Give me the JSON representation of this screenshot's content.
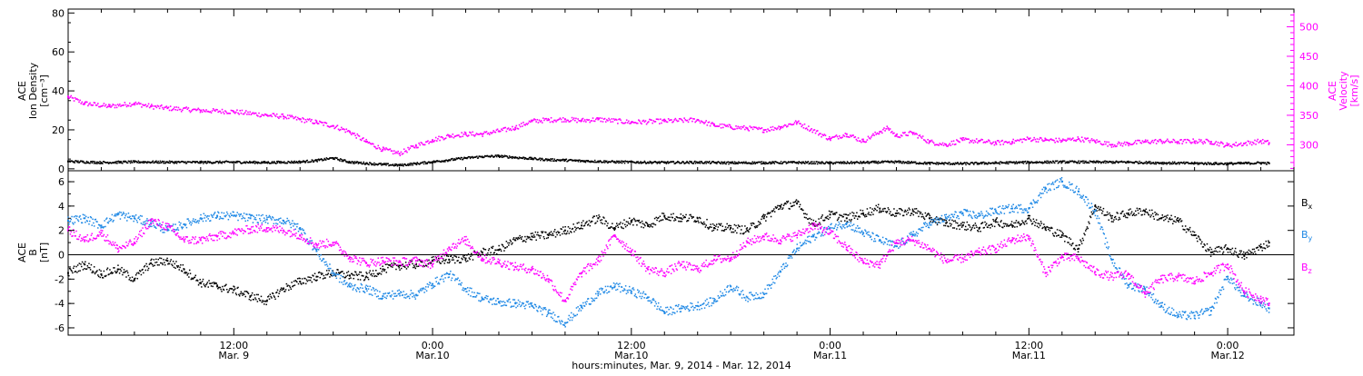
{
  "chart_data": [
    {
      "type": "scatter",
      "panel": "top",
      "ylabel_left": [
        "ACE",
        "Ion Density",
        "[cm⁻³]"
      ],
      "ylabel_right": [
        "ACE",
        "Velocity",
        "[km/s]"
      ],
      "x_unit": "hours since 2014-03-09 00:00",
      "xlim": [
        2,
        76
      ],
      "ylim_left": [
        -1,
        82
      ],
      "left_ticks": [
        "0",
        "20",
        "40",
        "60",
        "80"
      ],
      "ylim_right": [
        256,
        530
      ],
      "right_ticks": [
        "300",
        "350",
        "400",
        "450",
        "500"
      ],
      "grid": false,
      "series": [
        {
          "axis": "right",
          "color": "#ff00ff",
          "x": [
            2,
            3,
            4.5,
            6,
            7,
            8,
            10,
            12,
            14,
            15,
            16,
            17,
            18,
            19,
            20,
            21,
            22,
            23,
            24,
            25,
            26,
            27,
            28,
            29,
            30,
            31,
            32,
            33,
            34,
            36,
            38,
            40,
            41,
            42,
            43,
            44,
            45,
            46,
            48,
            49,
            50,
            51,
            51.5,
            52,
            53,
            54,
            55,
            56,
            57,
            58,
            59,
            60,
            61,
            62,
            63,
            64,
            65,
            66,
            67,
            68,
            69,
            70,
            71,
            72,
            73,
            74,
            74.5
          ],
          "y": [
            381,
            370,
            365,
            370,
            365,
            362,
            358,
            356,
            350,
            348,
            343,
            338,
            332,
            322,
            305,
            292,
            285,
            298,
            308,
            315,
            318,
            318,
            323,
            329,
            340,
            342,
            343,
            341,
            343,
            338,
            340,
            342,
            333,
            330,
            328,
            325,
            330,
            338,
            310,
            318,
            306,
            322,
            328,
            315,
            320,
            305,
            300,
            308,
            306,
            303,
            305,
            310,
            308,
            307,
            310,
            306,
            300,
            302,
            305,
            306,
            305,
            306,
            305,
            299,
            302,
            306,
            303
          ]
        },
        {
          "axis": "left",
          "color": "#000000",
          "x": [
            2,
            4,
            6,
            8,
            10,
            12,
            14,
            16,
            17,
            18,
            19,
            20,
            21,
            22,
            23,
            24,
            25,
            26,
            27,
            28,
            29,
            30,
            31,
            32,
            33,
            34,
            35,
            36,
            38,
            40,
            42,
            44,
            46,
            48,
            50,
            52,
            54,
            56,
            58,
            60,
            62,
            64,
            66,
            68,
            70,
            72,
            74,
            74.5
          ],
          "y": [
            3.8,
            3.2,
            3.5,
            3.4,
            3.3,
            3.4,
            3.2,
            3.5,
            4.2,
            5.5,
            3.4,
            2.8,
            2.2,
            1.8,
            2.6,
            3.5,
            4.5,
            5.5,
            6.2,
            6.5,
            5.8,
            5.2,
            4.6,
            4.4,
            4.0,
            3.8,
            3.5,
            3.4,
            3.2,
            3.3,
            3.0,
            3.1,
            3.2,
            3.0,
            3.2,
            3.5,
            2.8,
            2.6,
            3.0,
            3.3,
            3.5,
            3.4,
            3.4,
            3.0,
            2.8,
            2.6,
            3.0,
            2.8
          ]
        }
      ]
    },
    {
      "type": "scatter",
      "panel": "bottom",
      "ylabel": [
        "ACE",
        "B",
        "[nT]"
      ],
      "x_unit": "hours since 2014-03-09 00:00",
      "xlim": [
        2,
        76
      ],
      "ylim": [
        -6.6,
        6.9
      ],
      "ticks": [
        "-6",
        "-4",
        "-2",
        "0",
        "2",
        "4",
        "6"
      ],
      "zero_line": true,
      "grid": false,
      "series": [
        {
          "name": "B",
          "subscript": "x",
          "color": "#000000",
          "x": [
            2,
            3,
            4,
            5,
            6,
            7,
            8,
            9,
            10,
            11,
            12,
            13,
            14,
            15,
            16,
            17,
            18,
            19,
            20,
            21,
            22,
            23,
            24,
            25,
            26,
            27,
            28,
            29,
            30,
            31,
            32,
            33,
            34,
            35,
            36,
            37,
            38,
            39,
            40,
            41,
            42,
            43,
            44,
            45,
            46,
            47,
            48,
            49,
            50,
            51,
            52,
            53,
            54,
            55,
            56,
            57,
            58,
            59,
            60,
            61,
            62,
            63,
            64,
            65,
            66,
            67,
            68,
            69,
            70,
            71,
            72,
            73,
            74,
            74.5
          ],
          "y": [
            -1.5,
            -0.8,
            -1.6,
            -1.2,
            -2.0,
            -0.7,
            -0.5,
            -1.2,
            -2.3,
            -2.6,
            -2.9,
            -3.4,
            -3.8,
            -2.8,
            -2.2,
            -1.8,
            -1.5,
            -1.7,
            -1.8,
            -1.2,
            -0.9,
            -0.8,
            -0.5,
            -0.4,
            -0.3,
            0.2,
            0.4,
            1.2,
            1.5,
            1.6,
            2.0,
            2.4,
            3.0,
            2.2,
            2.8,
            2.4,
            3.2,
            3.0,
            3.0,
            2.2,
            2.2,
            2.0,
            3.0,
            4.0,
            4.2,
            2.5,
            3.3,
            3.0,
            3.4,
            3.8,
            3.4,
            3.6,
            3.0,
            2.6,
            2.4,
            2.2,
            2.7,
            2.4,
            3.0,
            2.2,
            1.6,
            0.5,
            4.0,
            3.0,
            3.4,
            3.6,
            3.0,
            2.8,
            1.6,
            0.2,
            0.5,
            -0.1,
            0.6,
            1.0
          ]
        },
        {
          "name": "B",
          "subscript": "y",
          "color": "#1e88e5",
          "x": [
            2,
            3,
            4,
            5,
            6,
            7,
            8,
            9,
            10,
            11,
            12,
            13,
            14,
            15,
            16,
            17,
            18,
            19,
            20,
            21,
            22,
            23,
            24,
            25,
            26,
            27,
            28,
            29,
            30,
            31,
            32,
            33,
            34,
            35,
            36,
            37,
            38,
            39,
            40,
            41,
            42,
            43,
            44,
            45,
            46,
            47,
            48,
            49,
            50,
            51,
            52,
            53,
            54,
            55,
            56,
            57,
            58,
            59,
            60,
            61,
            62,
            63,
            64,
            65,
            66,
            67,
            68,
            69,
            70,
            71,
            72,
            73,
            74,
            74.5
          ],
          "y": [
            2.8,
            3.0,
            2.4,
            3.3,
            3.0,
            2.6,
            2.0,
            2.5,
            3.0,
            3.2,
            3.2,
            3.0,
            2.9,
            2.8,
            2.2,
            0.3,
            -1.5,
            -2.6,
            -2.8,
            -3.4,
            -3.2,
            -3.3,
            -2.4,
            -1.6,
            -2.8,
            -3.6,
            -3.9,
            -4.0,
            -4.2,
            -4.8,
            -5.6,
            -4.3,
            -3.2,
            -2.6,
            -3.0,
            -3.5,
            -4.7,
            -4.4,
            -4.2,
            -3.8,
            -2.6,
            -3.5,
            -3.2,
            -1.4,
            0.5,
            1.5,
            2.2,
            2.6,
            1.8,
            1.2,
            0.7,
            1.6,
            2.6,
            3.0,
            3.4,
            3.2,
            3.6,
            3.8,
            3.8,
            5.4,
            6.0,
            5.2,
            3.6,
            -0.4,
            -2.5,
            -2.8,
            -4.2,
            -5.0,
            -5.0,
            -4.6,
            -1.8,
            -3.4,
            -4.0,
            -4.4
          ]
        },
        {
          "name": "B",
          "subscript": "z",
          "color": "#ff00ff",
          "x": [
            2,
            3,
            4,
            5,
            6,
            7,
            8,
            9,
            10,
            11,
            12,
            13,
            14,
            15,
            16,
            17,
            18,
            19,
            20,
            21,
            22,
            23,
            24,
            25,
            26,
            27,
            28,
            29,
            30,
            31,
            32,
            33,
            34,
            35,
            36,
            37,
            38,
            39,
            40,
            41,
            42,
            43,
            44,
            45,
            46,
            47,
            48,
            49,
            50,
            51,
            52,
            53,
            54,
            55,
            56,
            57,
            58,
            59,
            60,
            61,
            62,
            63,
            64,
            65,
            66,
            67,
            68,
            69,
            70,
            71,
            72,
            73,
            74,
            74.5
          ],
          "y": [
            2.0,
            1.2,
            1.8,
            0.5,
            1.0,
            2.8,
            2.3,
            1.2,
            1.2,
            1.5,
            1.8,
            2.1,
            2.2,
            2.0,
            1.6,
            0.8,
            1.0,
            -0.2,
            -0.7,
            -0.5,
            -0.6,
            -0.5,
            -0.8,
            0.6,
            1.2,
            -0.3,
            -0.6,
            -1.0,
            -1.2,
            -2.0,
            -3.8,
            -1.5,
            -0.5,
            1.6,
            0.3,
            -1.2,
            -1.5,
            -0.8,
            -1.2,
            -0.4,
            -0.3,
            1.0,
            1.5,
            1.2,
            1.6,
            2.4,
            1.8,
            0.6,
            -0.6,
            -0.8,
            1.0,
            1.2,
            0.5,
            -0.5,
            -0.3,
            0.2,
            0.5,
            1.2,
            1.5,
            -1.5,
            -0.2,
            -0.3,
            -1.4,
            -1.8,
            -1.6,
            -3.2,
            -2.0,
            -1.8,
            -2.2,
            -1.5,
            -0.8,
            -3.0,
            -3.6,
            -4.0
          ]
        }
      ]
    }
  ],
  "x_axis": {
    "ticks": [
      {
        "x": 12,
        "time": "12:00",
        "date": "Mar. 9"
      },
      {
        "x": 24,
        "time": "0:00",
        "date": "Mar.10"
      },
      {
        "x": 36,
        "time": "12:00",
        "date": "Mar.10"
      },
      {
        "x": 48,
        "time": "0:00",
        "date": "Mar.11"
      },
      {
        "x": 60,
        "time": "12:00",
        "date": "Mar.11"
      },
      {
        "x": 72,
        "time": "0:00",
        "date": "Mar.12"
      }
    ],
    "minor_step_hours": 2,
    "label": "hours:minutes, Mar.  9, 2014 - Mar. 12, 2014"
  },
  "colors": {
    "density": "#000000",
    "velocity": "#ff00ff",
    "bx": "#000000",
    "by": "#1e88e5",
    "bz": "#ff00ff"
  }
}
